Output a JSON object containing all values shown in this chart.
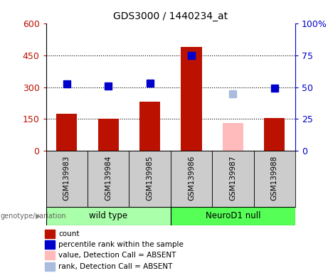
{
  "title": "GDS3000 / 1440234_at",
  "samples": [
    "GSM139983",
    "GSM139984",
    "GSM139985",
    "GSM139986",
    "GSM139987",
    "GSM139988"
  ],
  "counts": [
    175,
    152,
    232,
    490,
    130,
    155
  ],
  "counts_absent": [
    false,
    false,
    false,
    false,
    true,
    false
  ],
  "rank_pct": [
    52.5,
    50.8,
    53.0,
    75.3,
    45.0,
    49.0
  ],
  "ranks_absent": [
    false,
    false,
    false,
    false,
    true,
    false
  ],
  "count_color_present": "#bb1100",
  "count_color_absent": "#ffbbbb",
  "rank_color_present": "#0000cc",
  "rank_color_absent": "#aabbdd",
  "ylim_left": [
    0,
    600
  ],
  "ylim_right": [
    0,
    100
  ],
  "yticks_left": [
    0,
    150,
    300,
    450,
    600
  ],
  "yticks_left_labels": [
    "0",
    "150",
    "300",
    "450",
    "600"
  ],
  "yticks_right": [
    0,
    25,
    50,
    75,
    100
  ],
  "yticks_right_labels": [
    "0",
    "25",
    "50",
    "75",
    "100%"
  ],
  "groups": [
    {
      "label": "wild type",
      "samples_idx": [
        0,
        1,
        2
      ],
      "color": "#aaffaa"
    },
    {
      "label": "NeuroD1 null",
      "samples_idx": [
        3,
        4,
        5
      ],
      "color": "#55ff55"
    }
  ],
  "group_label_prefix": "genotype/variation",
  "legend_items": [
    {
      "label": "count",
      "color": "#bb1100"
    },
    {
      "label": "percentile rank within the sample",
      "color": "#0000cc"
    },
    {
      "label": "value, Detection Call = ABSENT",
      "color": "#ffbbbb"
    },
    {
      "label": "rank, Detection Call = ABSENT",
      "color": "#aabbdd"
    }
  ],
  "bar_width": 0.5,
  "marker_size": 7,
  "bg_color": "#cccccc",
  "plot_bg": "#ffffff"
}
